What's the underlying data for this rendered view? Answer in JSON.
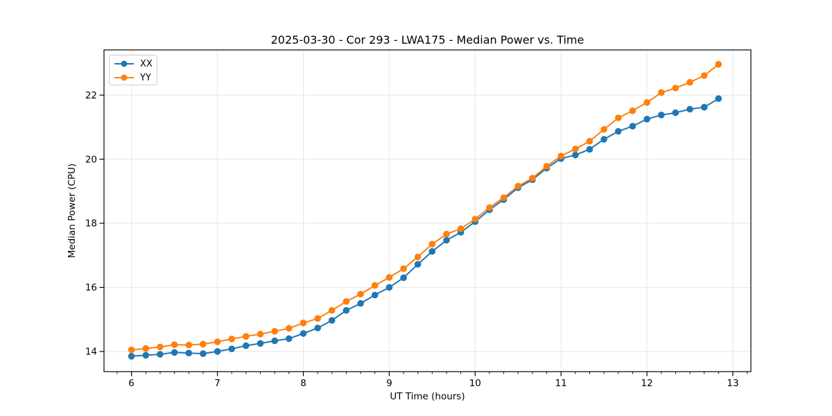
{
  "figure": {
    "background": "#ffffff"
  },
  "chart_data": {
    "type": "line",
    "title": "2025-03-30 - Cor 293 - LWA175 - Median Power vs. Time",
    "xlabel": "UT Time (hours)",
    "ylabel": "Median Power (CPU)",
    "x": [
      6.0,
      6.167,
      6.333,
      6.5,
      6.667,
      6.833,
      7.0,
      7.167,
      7.333,
      7.5,
      7.667,
      7.833,
      8.0,
      8.167,
      8.333,
      8.5,
      8.667,
      8.833,
      9.0,
      9.167,
      9.333,
      9.5,
      9.667,
      9.833,
      10.0,
      10.167,
      10.333,
      10.5,
      10.667,
      10.833,
      11.0,
      11.167,
      11.333,
      11.5,
      11.667,
      11.833,
      12.0,
      12.167,
      12.333,
      12.5,
      12.667,
      12.833
    ],
    "series": [
      {
        "name": "XX",
        "color": "#1f77b4",
        "values": [
          13.85,
          13.88,
          13.91,
          13.97,
          13.95,
          13.93,
          14.0,
          14.08,
          14.18,
          14.25,
          14.33,
          14.4,
          14.56,
          14.73,
          14.97,
          15.28,
          15.5,
          15.76,
          16.0,
          16.3,
          16.72,
          17.12,
          17.47,
          17.72,
          18.05,
          18.42,
          18.74,
          19.11,
          19.36,
          19.72,
          20.02,
          20.13,
          20.31,
          20.62,
          20.87,
          21.03,
          21.25,
          21.38,
          21.45,
          21.56,
          21.62,
          21.89
        ]
      },
      {
        "name": "YY",
        "color": "#ff7f0e",
        "values": [
          14.05,
          14.09,
          14.14,
          14.21,
          14.2,
          14.23,
          14.3,
          14.39,
          14.47,
          14.54,
          14.63,
          14.72,
          14.89,
          15.03,
          15.28,
          15.56,
          15.79,
          16.06,
          16.31,
          16.58,
          16.95,
          17.35,
          17.66,
          17.83,
          18.13,
          18.49,
          18.8,
          19.16,
          19.41,
          19.78,
          20.1,
          20.32,
          20.56,
          20.93,
          21.29,
          21.51,
          21.77,
          22.08,
          22.22,
          22.4,
          22.61,
          22.96
        ]
      }
    ],
    "xlim": [
      5.68,
      13.21
    ],
    "ylim": [
      13.37,
      23.41
    ],
    "xticks": [
      6,
      7,
      8,
      9,
      10,
      11,
      12,
      13
    ],
    "yticks": [
      14,
      16,
      18,
      20,
      22
    ],
    "x_minor_step": 0.16667,
    "grid": true,
    "grid_color": "#e5e5e5",
    "spine_color": "#000000",
    "tick_color": "#000000",
    "legend_position": "upper-left",
    "marker": "circle",
    "marker_size": 9.6,
    "line_width": 2
  }
}
